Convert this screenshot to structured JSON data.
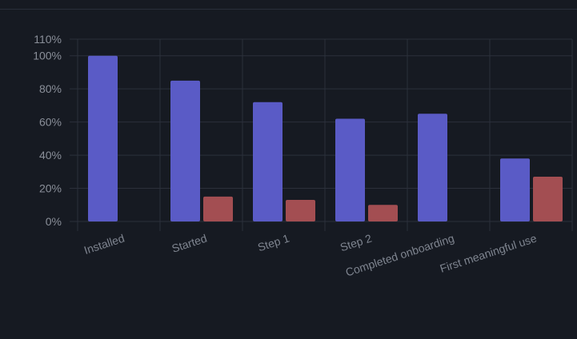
{
  "chart_data": {
    "type": "bar",
    "categories": [
      "Installed",
      "Started",
      "Step 1",
      "Step 2",
      "Completed onboarding",
      "First meaningful use"
    ],
    "series": [
      {
        "values": [
          100,
          85,
          72,
          62,
          65,
          38
        ],
        "color": "#5a5bc6"
      },
      {
        "values": [
          0,
          15,
          13,
          10,
          0,
          27
        ],
        "color": "#a34e52"
      }
    ],
    "y_ticks": [
      "0%",
      "20%",
      "40%",
      "60%",
      "80%",
      "100%",
      "110%"
    ],
    "ylim": [
      0,
      110
    ],
    "grid": true,
    "legend": "none"
  }
}
